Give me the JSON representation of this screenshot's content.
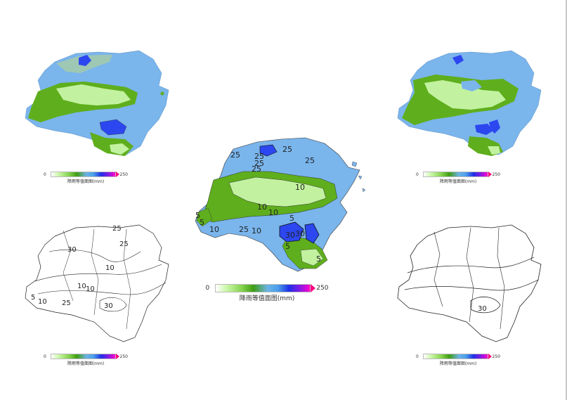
{
  "legend": {
    "min": "0",
    "max": "250",
    "title": "降雨等值面图(mm)"
  },
  "maps": {
    "top_left": {
      "type": "filled-contour"
    },
    "top_right": {
      "type": "filled-contour"
    },
    "center": {
      "type": "filled-contour-with-labels",
      "labels": [
        "25",
        "25",
        "25",
        "25",
        "25",
        "25",
        "10",
        "10",
        "10",
        "5",
        "5",
        "10",
        "25",
        "10",
        "5",
        "30",
        "30",
        "5",
        "5"
      ]
    },
    "bottom_left": {
      "type": "contour-lines",
      "labels": [
        "25",
        "30",
        "25",
        "10",
        "10",
        "10",
        "5",
        "10",
        "25",
        "30"
      ]
    },
    "bottom_right": {
      "type": "contour-lines",
      "labels": [
        "30"
      ]
    }
  },
  "colors": {
    "lightgreen": "#c2f2a0",
    "green": "#5fae1d",
    "blue": "#7ab5ec",
    "darkblue": "#2c47f0",
    "teal": "#9ec7b4"
  }
}
